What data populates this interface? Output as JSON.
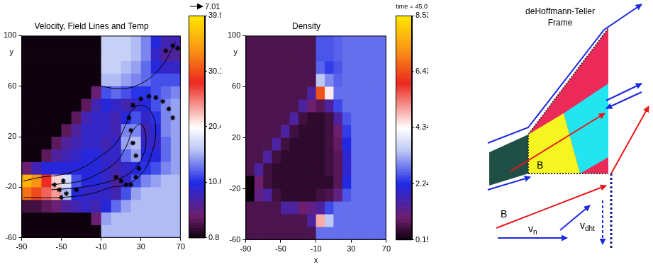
{
  "chart_data": [
    {
      "type": "heatmap",
      "title": "Velocity, Field Lines and Temp",
      "y_label": "y",
      "xlim": [
        -90,
        70
      ],
      "xticks": [
        -90,
        -50,
        -10,
        30,
        70
      ],
      "ylim": [
        -60,
        100
      ],
      "yticks": [
        -60,
        -20,
        20,
        60,
        100
      ],
      "grid": false,
      "reference_arrow": 7.01,
      "cell_x": [
        -85,
        -75,
        -65,
        -55,
        -45,
        -35,
        -25,
        -15,
        -5,
        5,
        15,
        25,
        35,
        45,
        55,
        65
      ],
      "cell_y": [
        95,
        85,
        75,
        65,
        55,
        45,
        35,
        25,
        15,
        5,
        -5,
        -15,
        -25,
        -35,
        -45,
        -55
      ],
      "cells": [
        [
          1,
          1,
          1,
          1,
          1,
          1,
          1,
          1,
          17,
          17,
          17,
          16,
          14,
          10,
          8,
          8
        ],
        [
          1,
          1,
          1,
          1,
          1,
          1,
          1,
          1,
          17,
          17,
          17,
          16,
          14,
          9,
          7,
          7
        ],
        [
          1,
          1,
          1,
          1,
          1,
          1,
          1,
          1,
          17,
          17,
          16,
          15,
          13,
          10,
          9,
          9
        ],
        [
          1,
          1,
          1,
          1,
          1,
          1,
          1,
          1,
          16,
          16,
          15,
          14,
          13,
          12,
          12,
          12
        ],
        [
          1,
          1,
          1,
          1,
          1,
          1,
          1,
          5,
          12,
          13,
          12,
          11,
          11,
          12,
          13,
          14
        ],
        [
          1,
          1,
          1,
          1,
          1,
          1,
          4,
          8,
          10,
          9,
          8,
          9,
          10,
          12,
          14,
          15
        ],
        [
          1,
          1,
          1,
          1,
          1,
          4,
          8,
          9,
          9,
          8,
          10,
          12,
          9,
          11,
          14,
          15
        ],
        [
          1,
          1,
          1,
          1,
          4,
          7,
          9,
          9,
          9,
          8,
          14,
          14,
          8,
          10,
          14,
          15
        ],
        [
          1,
          1,
          1,
          4,
          7,
          8,
          9,
          9,
          8,
          9,
          15,
          16,
          9,
          9,
          13,
          15
        ],
        [
          1,
          1,
          4,
          7,
          8,
          9,
          10,
          10,
          9,
          9,
          13,
          15,
          10,
          10,
          13,
          15
        ],
        [
          5,
          8,
          10,
          10,
          10,
          10,
          10,
          10,
          9,
          8,
          9,
          10,
          11,
          12,
          14,
          15
        ],
        [
          36,
          34,
          28,
          22,
          18,
          12,
          10,
          10,
          9,
          7,
          9,
          12,
          14,
          15,
          16,
          16
        ],
        [
          32,
          30,
          26,
          24,
          16,
          10,
          9,
          9,
          9,
          8,
          12,
          15,
          16,
          16,
          16,
          16
        ],
        [
          3,
          3,
          4,
          5,
          7,
          8,
          9,
          8,
          10,
          13,
          15,
          16,
          16,
          16,
          16,
          16
        ],
        [
          1,
          1,
          1,
          1,
          1,
          1,
          1,
          5,
          15,
          16,
          16,
          16,
          16,
          16,
          16,
          16
        ],
        [
          1,
          1,
          1,
          1,
          1,
          1,
          1,
          1,
          16,
          16,
          16,
          16,
          16,
          16,
          16,
          16
        ]
      ],
      "colorbar": {
        "range": [
          0.8,
          39.9
        ],
        "ticks": [
          0.8,
          10.6,
          20.4,
          30.1,
          39.9
        ]
      },
      "field_lines": [
        [
          [
            -88,
            -15
          ],
          [
            -70,
            -12
          ],
          [
            -50,
            -10
          ],
          [
            -30,
            -5
          ],
          [
            -10,
            5
          ],
          [
            5,
            15
          ],
          [
            15,
            30
          ],
          [
            20,
            40
          ],
          [
            30,
            45
          ],
          [
            40,
            40
          ],
          [
            45,
            25
          ],
          [
            40,
            5
          ],
          [
            30,
            -10
          ],
          [
            15,
            -18
          ],
          [
            0,
            -20
          ],
          [
            -20,
            -25
          ],
          [
            -50,
            -28
          ],
          [
            -88,
            -28
          ]
        ],
        [
          [
            -60,
            -18
          ],
          [
            -30,
            -15
          ],
          [
            -10,
            -8
          ],
          [
            5,
            0
          ],
          [
            15,
            12
          ],
          [
            22,
            25
          ],
          [
            30,
            30
          ],
          [
            35,
            20
          ],
          [
            32,
            5
          ],
          [
            20,
            -8
          ],
          [
            0,
            -15
          ],
          [
            -30,
            -20
          ],
          [
            -60,
            -22
          ]
        ],
        [
          [
            -10,
            60
          ],
          [
            10,
            58
          ],
          [
            30,
            62
          ],
          [
            50,
            75
          ],
          [
            65,
            95
          ]
        ]
      ],
      "markers": {
        "marker": "star",
        "color": "#000000",
        "points": [
          [
            -57,
            -18
          ],
          [
            -52,
            -22
          ],
          [
            -48,
            -15
          ],
          [
            -45,
            -25
          ],
          [
            -50,
            -28
          ],
          [
            -35,
            -22
          ],
          [
            5,
            -12
          ],
          [
            10,
            -15
          ],
          [
            15,
            -18
          ],
          [
            20,
            -18
          ],
          [
            25,
            -12
          ],
          [
            28,
            -5
          ],
          [
            25,
            5
          ],
          [
            22,
            15
          ],
          [
            20,
            25
          ],
          [
            18,
            35
          ],
          [
            22,
            45
          ],
          [
            30,
            50
          ],
          [
            38,
            52
          ],
          [
            45,
            51
          ],
          [
            52,
            48
          ],
          [
            58,
            42
          ],
          [
            62,
            35
          ],
          [
            55,
            88
          ],
          [
            62,
            92
          ],
          [
            67,
            90
          ]
        ]
      }
    },
    {
      "type": "heatmap",
      "title": "Density",
      "x_label": "x",
      "y_label": "y",
      "time_label": "time = 45.0",
      "xlim": [
        -90,
        70
      ],
      "xticks": [
        -90,
        -50,
        -10,
        30,
        70
      ],
      "ylim": [
        -60,
        100
      ],
      "yticks": [
        -60,
        -20,
        20,
        60,
        100
      ],
      "grid": false,
      "cell_x": [
        -85,
        -75,
        -65,
        -55,
        -45,
        -35,
        -25,
        -15,
        -5,
        5,
        15,
        25,
        35,
        45,
        55,
        65
      ],
      "cell_y": [
        95,
        85,
        75,
        65,
        55,
        45,
        35,
        25,
        15,
        5,
        -5,
        -15,
        -25,
        -35,
        -45,
        -55
      ],
      "cells": [
        [
          0.7,
          0.7,
          0.7,
          0.7,
          0.7,
          0.7,
          0.7,
          0.7,
          2.6,
          2.6,
          2.7,
          2.8,
          2.8,
          2.8,
          2.8,
          2.8
        ],
        [
          0.7,
          0.7,
          0.7,
          0.7,
          0.7,
          0.7,
          0.7,
          0.7,
          2.6,
          2.6,
          2.7,
          2.8,
          2.8,
          2.8,
          2.8,
          2.8
        ],
        [
          0.7,
          0.7,
          0.7,
          0.7,
          0.7,
          0.7,
          0.7,
          0.7,
          2.7,
          2.4,
          2.6,
          2.8,
          2.8,
          2.8,
          2.8,
          2.8
        ],
        [
          0.7,
          0.7,
          0.7,
          0.7,
          0.7,
          0.7,
          0.7,
          0.7,
          3.5,
          3.0,
          2.7,
          2.8,
          2.8,
          2.8,
          2.8,
          2.8
        ],
        [
          0.7,
          0.7,
          0.7,
          0.7,
          0.7,
          0.7,
          0.7,
          1.5,
          6.5,
          4.5,
          2.8,
          2.8,
          2.8,
          2.8,
          2.8,
          2.8
        ],
        [
          0.7,
          0.7,
          0.7,
          0.7,
          0.7,
          0.7,
          1.5,
          1.0,
          0.8,
          1.5,
          2.5,
          2.8,
          2.8,
          2.8,
          2.8,
          2.8
        ],
        [
          0.7,
          0.7,
          0.7,
          0.7,
          0.7,
          1.5,
          0.6,
          0.45,
          0.45,
          0.6,
          1.5,
          2.6,
          2.8,
          2.8,
          2.8,
          2.8
        ],
        [
          0.7,
          0.7,
          0.7,
          0.7,
          1.5,
          0.6,
          0.45,
          0.45,
          0.45,
          0.6,
          1.0,
          2.4,
          2.8,
          2.8,
          2.8,
          2.8
        ],
        [
          0.7,
          0.7,
          0.7,
          1.5,
          0.6,
          0.45,
          0.45,
          0.45,
          0.45,
          0.6,
          0.9,
          2.2,
          2.8,
          2.8,
          2.8,
          2.8
        ],
        [
          0.7,
          0.7,
          1.5,
          0.6,
          0.45,
          0.45,
          0.45,
          0.45,
          0.45,
          0.6,
          0.8,
          2.0,
          2.8,
          2.8,
          2.8,
          2.8
        ],
        [
          0.7,
          1.5,
          0.6,
          0.45,
          0.45,
          0.45,
          0.45,
          0.45,
          0.45,
          0.6,
          0.8,
          2.0,
          2.8,
          2.8,
          2.8,
          2.8
        ],
        [
          0.15,
          1.0,
          0.6,
          0.45,
          0.45,
          0.45,
          0.45,
          0.45,
          0.45,
          0.45,
          0.8,
          2.2,
          2.8,
          2.8,
          2.8,
          2.8
        ],
        [
          0.15,
          1.2,
          1.5,
          0.6,
          0.45,
          0.45,
          0.45,
          0.45,
          0.6,
          0.7,
          1.2,
          2.6,
          2.8,
          2.8,
          2.8,
          2.8
        ],
        [
          0.7,
          0.7,
          0.7,
          0.7,
          1.5,
          1.5,
          1.0,
          1.2,
          1.5,
          2.5,
          2.8,
          2.8,
          2.8,
          2.8,
          2.8,
          2.8
        ],
        [
          0.7,
          0.7,
          0.7,
          0.7,
          0.7,
          0.7,
          0.7,
          1.5,
          5.0,
          3.5,
          2.8,
          2.8,
          2.8,
          2.8,
          2.8,
          2.8
        ],
        [
          0.7,
          0.7,
          0.7,
          0.7,
          0.7,
          0.7,
          0.7,
          0.7,
          2.8,
          2.8,
          2.8,
          2.8,
          2.8,
          2.8,
          2.8,
          2.8
        ]
      ],
      "colorbar": {
        "range": [
          0.15,
          8.53
        ],
        "ticks": [
          0.15,
          2.24,
          4.34,
          6.43,
          8.53
        ]
      }
    }
  ],
  "diagram": {
    "title": "deHoffmann-Teller Frame",
    "labels": {
      "field_region": "B",
      "field_vector": "B",
      "v_dht": {
        "base": "v",
        "subscript": "dht"
      },
      "v_n": {
        "base": "v",
        "subscript": "n"
      }
    }
  }
}
